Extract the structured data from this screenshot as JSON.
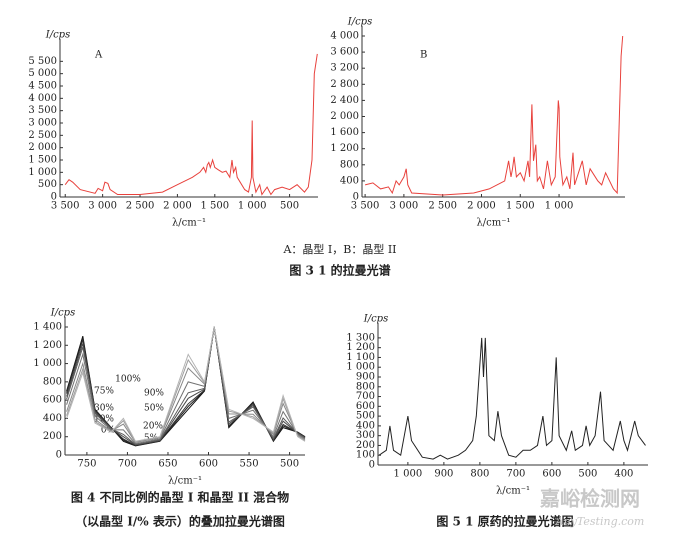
{
  "chart_data": [
    {
      "type": "line",
      "panel": "A",
      "y_label": "I/cps",
      "x_label": "λ/cm⁻¹",
      "color": "#e8413c",
      "xlim": [
        3570,
        120
      ],
      "ylim": [
        0,
        6000
      ],
      "xticks": [
        {
          "value": 3500,
          "label": "3 500"
        },
        {
          "value": 3000,
          "label": "3 000"
        },
        {
          "value": 2500,
          "label": "2 500"
        },
        {
          "value": 2000,
          "label": "2 000"
        },
        {
          "value": 1500,
          "label": "1 500"
        },
        {
          "value": 1000,
          "label": "1 000"
        },
        500
      ],
      "yticks": [
        0,
        500,
        {
          "value": 1000,
          "label": "1 000"
        },
        {
          "value": 1500,
          "label": "1 500"
        },
        {
          "value": 2000,
          "label": "2 000"
        },
        {
          "value": 2500,
          "label": "2 500"
        },
        {
          "value": 3000,
          "label": "3 000"
        },
        {
          "value": 3500,
          "label": "3 500"
        },
        {
          "value": 4000,
          "label": "4 000"
        },
        {
          "value": 4500,
          "label": "4 500"
        },
        {
          "value": 5000,
          "label": "5 000"
        },
        {
          "value": 5500,
          "label": "5 500"
        }
      ],
      "x": [
        3500,
        3450,
        3400,
        3300,
        3100,
        3060,
        3000,
        2970,
        2930,
        2900,
        2800,
        2500,
        2200,
        2000,
        1800,
        1700,
        1650,
        1620,
        1600,
        1580,
        1560,
        1530,
        1500,
        1450,
        1400,
        1350,
        1300,
        1270,
        1250,
        1220,
        1200,
        1100,
        1050,
        1010,
        1000,
        990,
        950,
        900,
        870,
        800,
        750,
        700,
        600,
        500,
        400,
        300,
        250,
        200,
        170,
        130
      ],
      "values": [
        500,
        700,
        600,
        300,
        150,
        350,
        250,
        600,
        550,
        300,
        100,
        100,
        200,
        500,
        800,
        1000,
        1200,
        1000,
        1300,
        1400,
        1200,
        1500,
        1200,
        1100,
        1000,
        1050,
        800,
        1500,
        1000,
        1200,
        800,
        300,
        200,
        800,
        3100,
        800,
        200,
        500,
        100,
        400,
        100,
        300,
        400,
        300,
        500,
        200,
        400,
        1500,
        5000,
        5800
      ]
    },
    {
      "type": "line",
      "panel": "B",
      "y_label": "I/cps",
      "x_label": "λ/cm⁻¹",
      "color": "#e8413c",
      "xlim": [
        3540,
        150
      ],
      "ylim": [
        0,
        4000
      ],
      "xticks": [
        {
          "value": 3500,
          "label": "3 500"
        },
        {
          "value": 3000,
          "label": "3 000"
        },
        {
          "value": 2500,
          "label": "2 500"
        },
        {
          "value": 2000,
          "label": "2 000"
        },
        {
          "value": 1500,
          "label": "1 500"
        },
        {
          "value": 1000,
          "label": "1 000"
        }
      ],
      "yticks": [
        0,
        400,
        800,
        {
          "value": 1200,
          "label": "1 200"
        },
        {
          "value": 1600,
          "label": "1 600"
        },
        {
          "value": 2000,
          "label": "2 000"
        },
        {
          "value": 2400,
          "label": "2 400"
        },
        {
          "value": 2800,
          "label": "2 800"
        },
        {
          "value": 3200,
          "label": "3 200"
        },
        {
          "value": 3600,
          "label": "3 600"
        },
        {
          "value": 4000,
          "label": "4 000"
        }
      ],
      "x": [
        3500,
        3400,
        3300,
        3200,
        3150,
        3100,
        3060,
        3000,
        2970,
        2950,
        2900,
        2500,
        2100,
        1900,
        1700,
        1650,
        1620,
        1600,
        1580,
        1550,
        1500,
        1450,
        1400,
        1380,
        1350,
        1330,
        1300,
        1280,
        1250,
        1200,
        1150,
        1100,
        1050,
        1010,
        1000,
        990,
        950,
        900,
        860,
        820,
        800,
        700,
        650,
        600,
        500,
        450,
        400,
        300,
        250,
        200,
        180
      ],
      "values": [
        300,
        350,
        200,
        250,
        100,
        400,
        300,
        500,
        700,
        300,
        100,
        50,
        100,
        200,
        400,
        900,
        500,
        700,
        1000,
        500,
        600,
        400,
        900,
        500,
        2300,
        900,
        1300,
        400,
        500,
        200,
        900,
        300,
        500,
        2400,
        2200,
        1000,
        300,
        500,
        200,
        1100,
        300,
        900,
        300,
        700,
        400,
        300,
        600,
        200,
        100,
        3500,
        4000
      ]
    },
    {
      "type": "line",
      "y_label": "I/cps",
      "x_label": "λ/cm⁻¹",
      "xlim": [
        777,
        481
      ],
      "ylim": [
        0,
        1400
      ],
      "xticks": [
        750,
        700,
        650,
        600,
        550,
        500
      ],
      "yticks": [
        0,
        200,
        400,
        600,
        800,
        {
          "value": 1000,
          "label": "1 000"
        },
        {
          "value": 1200,
          "label": "1 200"
        },
        {
          "value": 1400,
          "label": "1 400"
        }
      ],
      "x": [
        775,
        755,
        740,
        720,
        705,
        690,
        660,
        625,
        605,
        593,
        575,
        545,
        520,
        508,
        490,
        481
      ],
      "series": [
        {
          "name": "0%",
          "color": "#111111",
          "values": [
            700,
            1300,
            500,
            300,
            150,
            100,
            150,
            500,
            700,
            1400,
            300,
            580,
            150,
            300,
            250,
            200
          ]
        },
        {
          "name": "5%",
          "color": "#222222",
          "values": [
            685,
            1280,
            493,
            298,
            163,
            103,
            153,
            530,
            705,
            1400,
            310,
            571,
            155,
            318,
            248,
            198
          ]
        },
        {
          "name": "10%",
          "color": "#333333",
          "values": [
            670,
            1260,
            485,
            295,
            175,
            105,
            155,
            560,
            710,
            1400,
            320,
            562,
            160,
            335,
            245,
            195
          ]
        },
        {
          "name": "20%",
          "color": "#4a4a4a",
          "values": [
            640,
            1220,
            470,
            290,
            200,
            110,
            160,
            620,
            720,
            1400,
            340,
            544,
            170,
            370,
            240,
            190
          ]
        },
        {
          "name": "30%",
          "color": "#5c5c5c",
          "values": [
            610,
            1180,
            455,
            285,
            225,
            115,
            165,
            680,
            730,
            1400,
            360,
            526,
            180,
            405,
            235,
            185
          ]
        },
        {
          "name": "50%",
          "color": "#727272",
          "values": [
            550,
            1100,
            425,
            275,
            275,
            125,
            175,
            800,
            750,
            1400,
            400,
            490,
            200,
            475,
            225,
            175
          ]
        },
        {
          "name": "75%",
          "color": "#888888",
          "values": [
            475,
            1000,
            388,
            263,
            338,
            138,
            188,
            950,
            775,
            1400,
            450,
            445,
            225,
            563,
            213,
            163
          ]
        },
        {
          "name": "90%",
          "color": "#9e9e9e",
          "values": [
            430,
            940,
            365,
            255,
            375,
            145,
            195,
            1040,
            790,
            1400,
            480,
            418,
            240,
            615,
            205,
            155
          ]
        },
        {
          "name": "100%",
          "color": "#b4b4b4",
          "values": [
            400,
            900,
            350,
            250,
            400,
            150,
            200,
            1100,
            800,
            1400,
            500,
            400,
            250,
            650,
            200,
            150
          ]
        }
      ]
    },
    {
      "type": "line",
      "y_label": "I/cps",
      "x_label": "λ/cm⁻¹",
      "color": "#222222",
      "xlim": [
        1083,
        333
      ],
      "ylim": [
        0,
        1350
      ],
      "xticks": [
        {
          "value": 1000,
          "label": "1 000"
        },
        900,
        800,
        700,
        600,
        500,
        400
      ],
      "yticks": [
        0,
        100,
        200,
        300,
        400,
        500,
        600,
        700,
        800,
        900,
        {
          "value": 1000,
          "label": "1 000"
        },
        {
          "value": 1100,
          "label": "1 100"
        },
        {
          "value": 1200,
          "label": "1 200"
        },
        {
          "value": 1300,
          "label": "1 300"
        }
      ],
      "x": [
        1080,
        1060,
        1050,
        1040,
        1020,
        1000,
        990,
        960,
        930,
        910,
        890,
        860,
        840,
        820,
        810,
        795,
        790,
        785,
        775,
        760,
        750,
        740,
        720,
        700,
        680,
        660,
        640,
        625,
        615,
        600,
        588,
        580,
        560,
        545,
        535,
        515,
        505,
        495,
        480,
        465,
        455,
        430,
        410,
        400,
        390,
        380,
        370,
        360,
        340
      ],
      "values": [
        100,
        150,
        400,
        150,
        100,
        500,
        250,
        80,
        60,
        100,
        60,
        100,
        150,
        250,
        500,
        1300,
        900,
        1300,
        300,
        250,
        550,
        300,
        100,
        80,
        150,
        150,
        200,
        500,
        200,
        250,
        1100,
        300,
        150,
        350,
        150,
        200,
        400,
        200,
        300,
        750,
        250,
        150,
        450,
        250,
        150,
        300,
        450,
        300,
        200
      ]
    }
  ],
  "figure3": {
    "note": "A：晶型 I，B：晶型 II",
    "caption": "图 3  1 的拉曼光谱"
  },
  "figure4": {
    "caption_line1": "图 4  不同比例的晶型 I 和晶型 II 混合物",
    "caption_line2": "（以晶型 I/% 表示）的叠加拉曼光谱图"
  },
  "figure5": {
    "caption": "图 5  1 原药的拉曼光谱图"
  },
  "watermark": {
    "title": "嘉峪检测网",
    "url": "AnyTesting.com"
  }
}
